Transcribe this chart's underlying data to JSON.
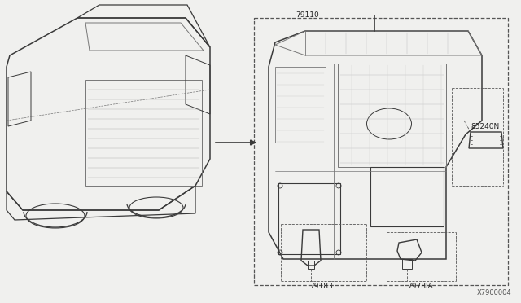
{
  "background_color": "#f0f0ee",
  "diagram_id": "X7900004",
  "labels": {
    "part1": "79110",
    "part2": "85240N",
    "part3": "79183",
    "part4": "7978IA"
  },
  "colors": {
    "line": "#3a3a3a",
    "dashed": "#555555",
    "text": "#222222",
    "bg": "#f0f0ee",
    "light_line": "#777777"
  },
  "font_size_label": 6.5,
  "font_size_id": 6.0
}
